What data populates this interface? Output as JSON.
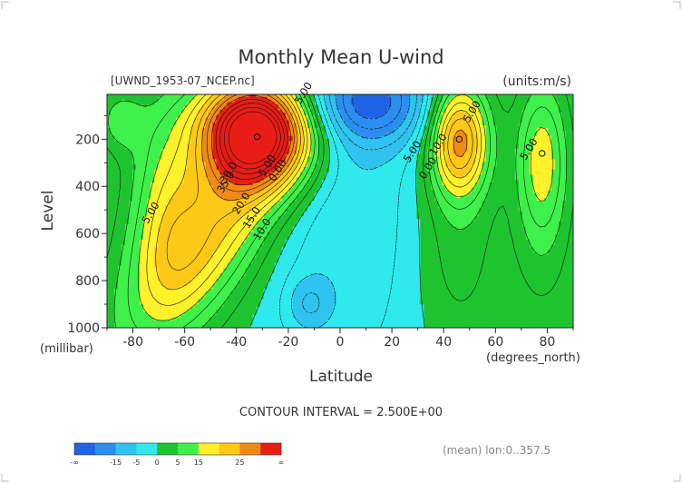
{
  "chart_data": {
    "type": "heatmap",
    "title": "Monthly Mean U-wind",
    "dataset_label": "[UWND_1953-07_NCEP.nc]",
    "units_label": "(units:m/s)",
    "xlabel": "Latitude",
    "xunit": "(degrees_north)",
    "ylabel": "Level",
    "yunit": "(millibar)",
    "xlim": [
      -90,
      90
    ],
    "ylim": [
      1000,
      10
    ],
    "y_inverted": true,
    "xticks": [
      -80,
      -60,
      -40,
      -20,
      0,
      20,
      40,
      60,
      80
    ],
    "xtick_labels": [
      "-80",
      "-60",
      "-40",
      "-20",
      "0",
      "20",
      "40",
      "60",
      "80"
    ],
    "yticks": [
      1000,
      800,
      600,
      400,
      200
    ],
    "ytick_labels": [
      "1000",
      "800",
      "600",
      "400",
      "200"
    ],
    "contour_interval_text": "CONTOUR INTERVAL = 2.500E+00",
    "footer_note": "(mean) lon:0..357.5",
    "contour_labels": [
      {
        "text": "5.00",
        "lat": -13,
        "lev": 12
      },
      {
        "text": "5.00",
        "lat": 52,
        "lev": 90
      },
      {
        "text": "5.00",
        "lat": -72,
        "lev": 520
      },
      {
        "text": "5.00",
        "lat": -27,
        "lev": 320
      },
      {
        "text": "5.00",
        "lat": 29,
        "lev": 260
      },
      {
        "text": "5.00",
        "lat": 74,
        "lev": 250
      },
      {
        "text": "0.00",
        "lat": -23,
        "lev": 340
      },
      {
        "text": "0.00",
        "lat": 35,
        "lev": 330
      },
      {
        "text": "10.0",
        "lat": 39,
        "lev": 230
      },
      {
        "text": "10.0",
        "lat": -29,
        "lev": 590
      },
      {
        "text": "15.0",
        "lat": -33,
        "lev": 540
      },
      {
        "text": "20.0",
        "lat": -37,
        "lev": 480
      },
      {
        "text": "30.0",
        "lat": -42,
        "lev": 350
      },
      {
        "text": "35.0",
        "lat": -43,
        "lev": 390
      }
    ],
    "peaks": [
      {
        "lat": -32,
        "lev": 190,
        "value": 36
      },
      {
        "lat": 46,
        "lev": 200,
        "value": 21
      },
      {
        "lat": 78,
        "lev": 260,
        "value": 11
      }
    ],
    "colorbar": {
      "colors": [
        "#1f63e6",
        "#2b8ef0",
        "#2fc3ef",
        "#2fe9ec",
        "#1ec42f",
        "#3ef04a",
        "#fff12b",
        "#fdc916",
        "#f08a16",
        "#e81d16"
      ],
      "labels": [
        "-∞",
        "-15",
        "-5",
        "0",
        "5",
        "15",
        "25",
        "∞"
      ]
    }
  }
}
